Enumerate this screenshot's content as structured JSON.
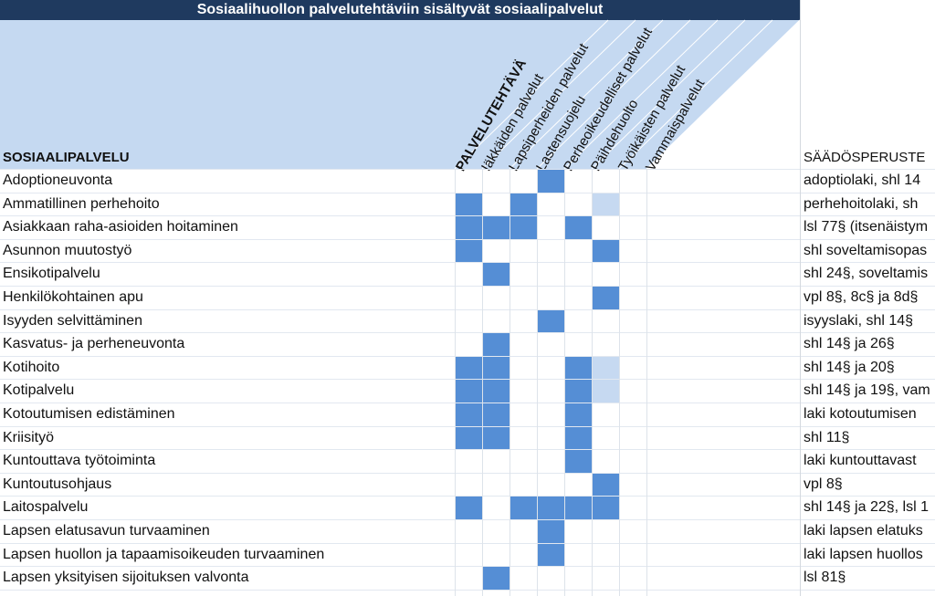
{
  "title": "Sosiaalihuollon palvelutehtäviin sisältyvät sosiaalipalvelut",
  "headers": {
    "sosiaalipalvelu": "SOSIAALIPALVELU",
    "palvelutehtava": "PALVELUTEHTÄVÄ",
    "saadosperuste": "SÄÄDÖSPERUSTE"
  },
  "columns": [
    "Iäkkäiden palvelut",
    "Lapsiperheiden palvelut",
    "Lastensuojelu",
    "Perheoikeudelliset palvelut",
    "Päihdehuolto",
    "Työikäisten palvelut",
    "Vammaispalvelut"
  ],
  "colors": {
    "on": "#558ed5",
    "light": "#c6d9f1",
    "title_bg": "#1f3a5f",
    "header_bg": "#c5d9f1"
  },
  "rows": [
    {
      "name": "Adoptioneuvonta",
      "basis": "adoptiolaki, shl 14",
      "marks": [
        0,
        0,
        0,
        1,
        0,
        0,
        0
      ]
    },
    {
      "name": "Ammatillinen perhehoito",
      "basis": "perhehoitolaki, sh",
      "marks": [
        1,
        0,
        1,
        0,
        0,
        2,
        0
      ]
    },
    {
      "name": "Asiakkaan raha-asioiden hoitaminen",
      "basis": "lsl 77§ (itsenäistym",
      "marks": [
        1,
        1,
        1,
        0,
        1,
        0,
        0
      ]
    },
    {
      "name": "Asunnon muutostyö",
      "basis": "shl soveltamisopas",
      "marks": [
        1,
        0,
        0,
        0,
        0,
        1,
        0
      ]
    },
    {
      "name": "Ensikotipalvelu",
      "basis": "shl 24§, soveltamis",
      "marks": [
        0,
        1,
        0,
        0,
        0,
        0,
        0
      ]
    },
    {
      "name": "Henkilökohtainen apu",
      "basis": "vpl 8§, 8c§ ja 8d§",
      "marks": [
        0,
        0,
        0,
        0,
        0,
        1,
        0
      ]
    },
    {
      "name": "Isyyden selvittäminen",
      "basis": "isyyslaki, shl 14§",
      "marks": [
        0,
        0,
        0,
        1,
        0,
        0,
        0
      ]
    },
    {
      "name": "Kasvatus- ja perheneuvonta",
      "basis": "shl 14§ ja 26§",
      "marks": [
        0,
        1,
        0,
        0,
        0,
        0,
        0
      ]
    },
    {
      "name": "Kotihoito",
      "basis": "shl 14§ ja 20§",
      "marks": [
        1,
        1,
        0,
        0,
        1,
        2,
        0
      ]
    },
    {
      "name": "Kotipalvelu",
      "basis": "shl 14§ ja 19§, vam",
      "marks": [
        1,
        1,
        0,
        0,
        1,
        2,
        0
      ]
    },
    {
      "name": "Kotoutumisen edistäminen",
      "basis": "laki kotoutumisen",
      "marks": [
        1,
        1,
        0,
        0,
        1,
        0,
        0
      ]
    },
    {
      "name": "Kriisityö",
      "basis": "shl 11§",
      "marks": [
        1,
        1,
        0,
        0,
        1,
        0,
        0
      ]
    },
    {
      "name": "Kuntouttava työtoiminta",
      "basis": "laki kuntouttavast",
      "marks": [
        0,
        0,
        0,
        0,
        1,
        0,
        0
      ]
    },
    {
      "name": "Kuntoutusohjaus",
      "basis": "vpl 8§",
      "marks": [
        0,
        0,
        0,
        0,
        0,
        1,
        0
      ]
    },
    {
      "name": "Laitospalvelu",
      "basis": "shl 14§ ja 22§, lsl 1",
      "marks": [
        1,
        0,
        1,
        1,
        1,
        1,
        0
      ]
    },
    {
      "name": "Lapsen elatusavun turvaaminen",
      "basis": "laki lapsen elatuks",
      "marks": [
        0,
        0,
        0,
        1,
        0,
        0,
        0
      ]
    },
    {
      "name": "Lapsen huollon ja tapaamisoikeuden turvaaminen",
      "basis": "laki lapsen huollos",
      "marks": [
        0,
        0,
        0,
        1,
        0,
        0,
        0
      ]
    },
    {
      "name": "Lapsen yksityisen sijoituksen valvonta",
      "basis": "lsl 81§",
      "marks": [
        0,
        1,
        0,
        0,
        0,
        0,
        0
      ]
    }
  ]
}
